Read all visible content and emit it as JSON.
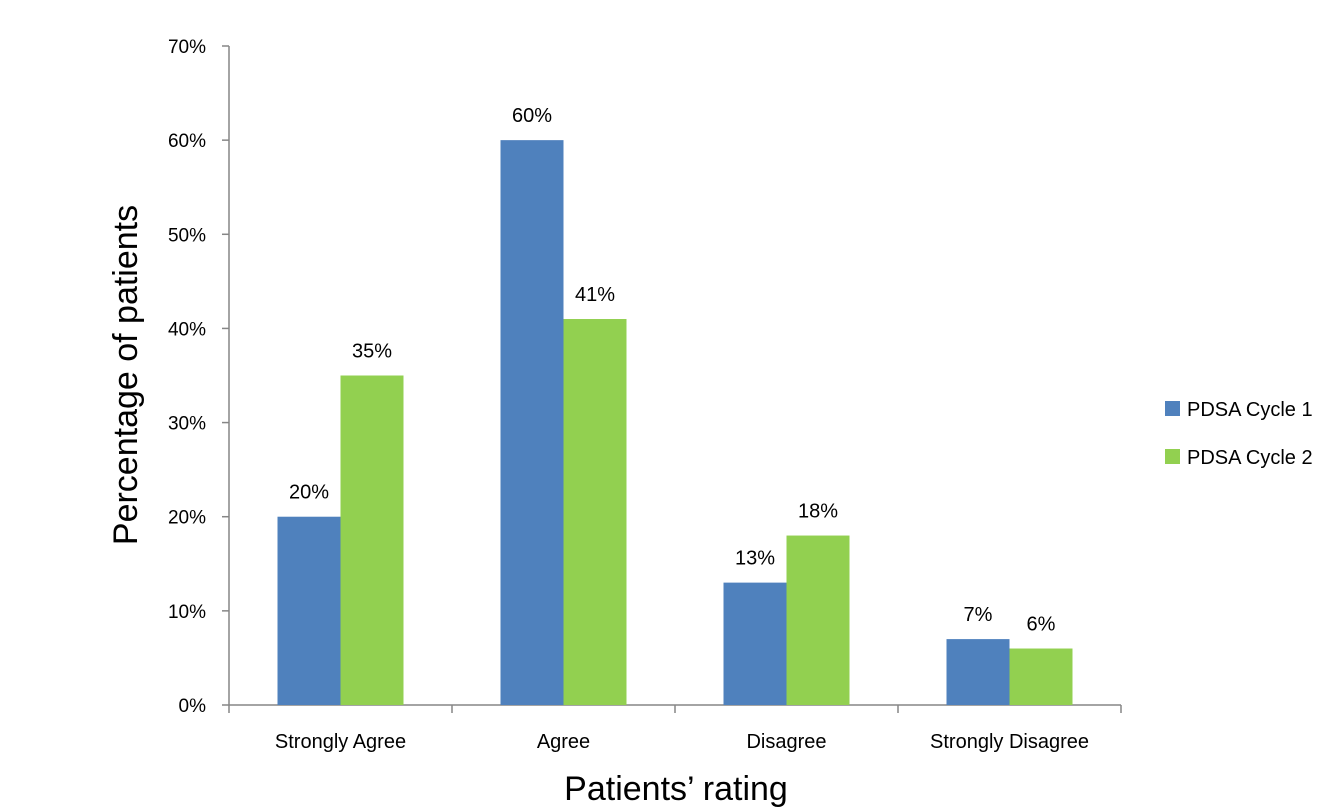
{
  "chart_data": {
    "type": "bar",
    "categories": [
      "Strongly Agree",
      "Agree",
      "Disagree",
      "Strongly Disagree"
    ],
    "series": [
      {
        "name": "PDSA Cycle 1",
        "values": [
          20,
          60,
          13,
          7
        ],
        "labels": [
          "20%",
          "60%",
          "13%",
          "7%"
        ],
        "color": "#4F81BD"
      },
      {
        "name": "PDSA Cycle 2",
        "values": [
          35,
          41,
          18,
          6
        ],
        "labels": [
          "35%",
          "41%",
          "18%",
          "6%"
        ],
        "color": "#92D050"
      }
    ],
    "title": "",
    "xlabel": "Patients’ rating",
    "ylabel": "Percentage of patients",
    "ylim": [
      0,
      70
    ],
    "yticks": [
      0,
      10,
      20,
      30,
      40,
      50,
      60,
      70
    ],
    "ytick_labels": [
      "0%",
      "10%",
      "20%",
      "30%",
      "40%",
      "50%",
      "60%",
      "70%"
    ],
    "grid": false,
    "legend_position": "right"
  }
}
